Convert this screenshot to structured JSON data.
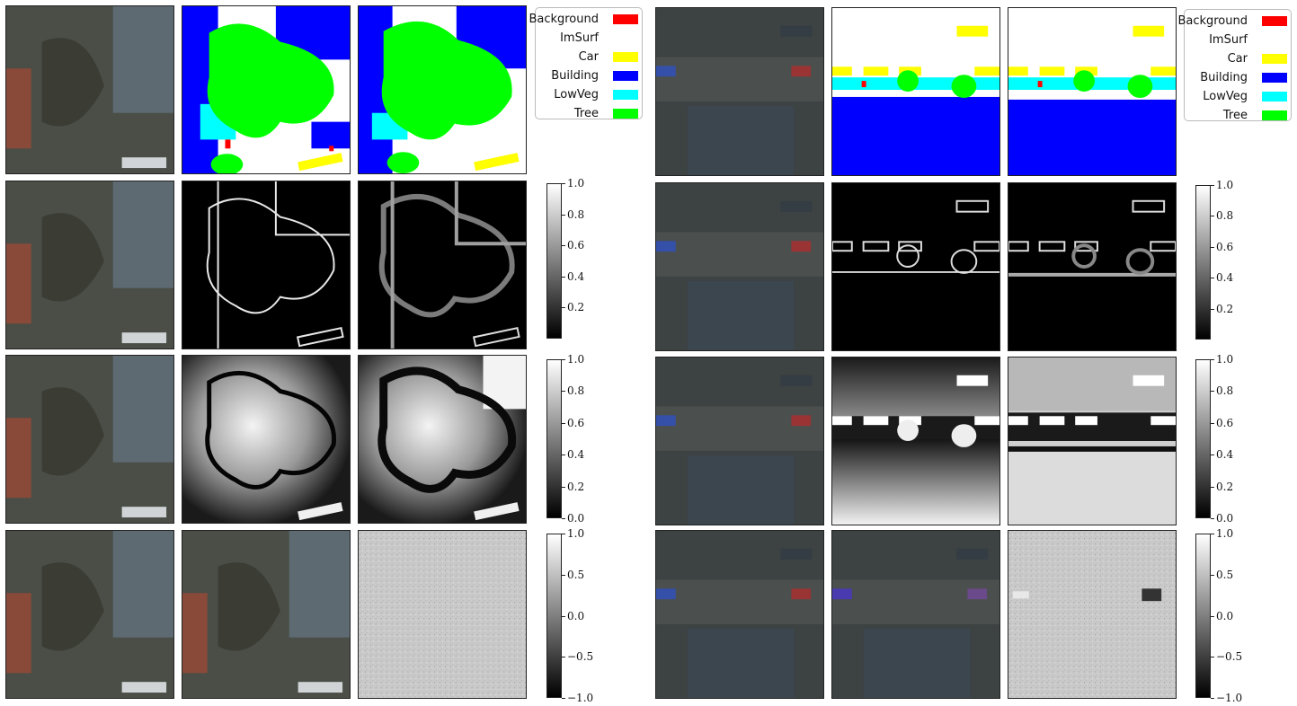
{
  "legend": {
    "entries": [
      {
        "label": "Background",
        "color": "#ff0000"
      },
      {
        "label": "ImSurf",
        "color": "#ffffff"
      },
      {
        "label": "Car",
        "color": "#ffff00"
      },
      {
        "label": "Building",
        "color": "#0000ff"
      },
      {
        "label": "LowVeg",
        "color": "#00ffff"
      },
      {
        "label": "Tree",
        "color": "#00ff00"
      }
    ]
  },
  "colorbars": {
    "unit": {
      "ticks": [
        "0.2",
        "0.4",
        "0.6",
        "0.8",
        "1.0"
      ]
    },
    "full": {
      "ticks": [
        "0.0",
        "0.2",
        "0.4",
        "0.6",
        "0.8",
        "1.0"
      ]
    },
    "signed": {
      "ticks": [
        "−1.0",
        "−0.5",
        "0.0",
        "0.5",
        "1.0"
      ]
    }
  },
  "colors": {
    "background": "#ff0000",
    "imsurf": "#ffffff",
    "car": "#ffff00",
    "building": "#0000ff",
    "lowveg": "#00ffff",
    "tree": "#00ff00"
  }
}
